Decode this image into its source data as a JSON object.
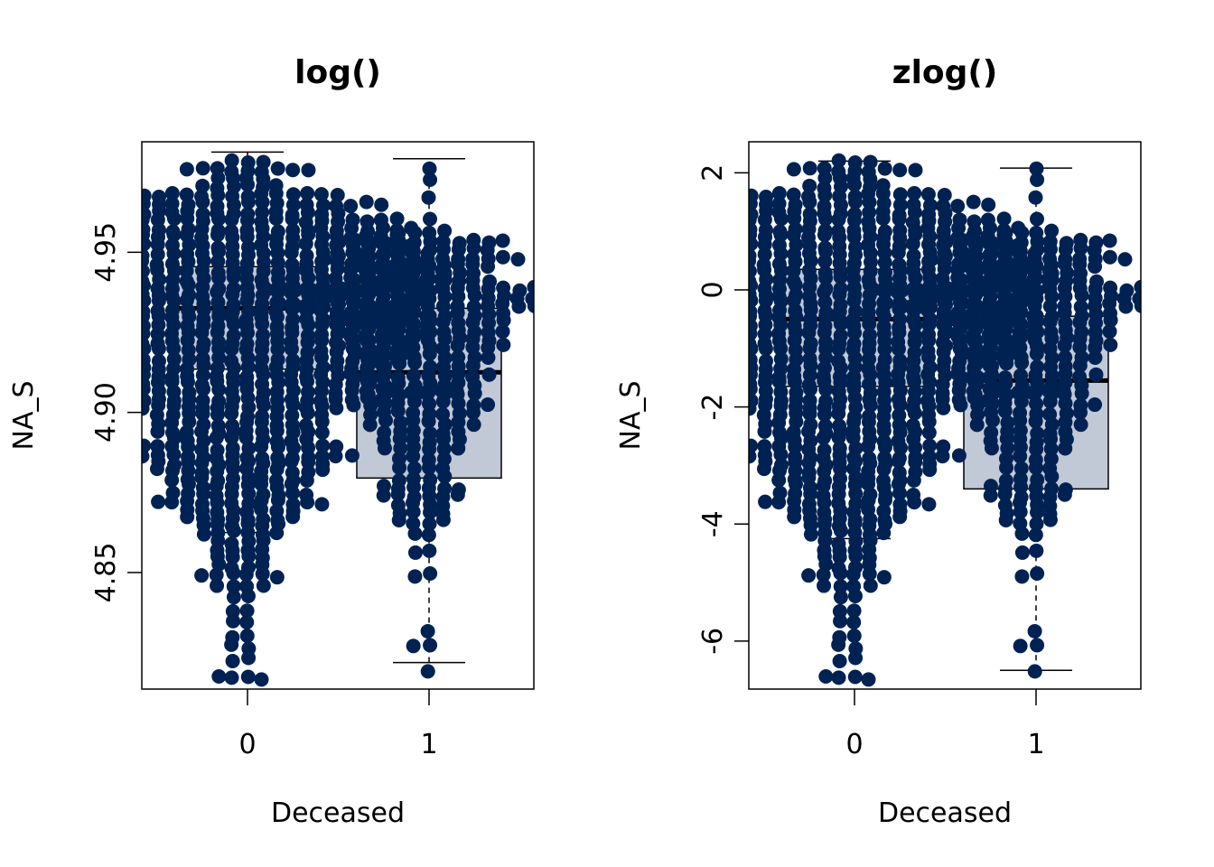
{
  "colors": {
    "point": "#002252",
    "box_fill": "#C1C8D6",
    "box_stroke": "#000000",
    "axis": "#000000",
    "background": "#FFFFFF"
  },
  "chart_data": [
    {
      "type": "boxplot-beeswarm",
      "title": "log()",
      "xlabel": "Deceased",
      "ylabel": "NA_S",
      "categories": [
        "0",
        "1"
      ],
      "ylim": [
        4.8136,
        4.9845
      ],
      "yticks": [
        4.85,
        4.9,
        4.95
      ],
      "ytick_labels": [
        "4.85",
        "4.90",
        "4.95"
      ],
      "boxes": [
        {
          "category": "0",
          "whisker_low": 4.8625,
          "q1": 4.9135,
          "median": 4.9325,
          "q3": 4.9455,
          "whisker_high": 4.9813
        },
        {
          "category": "1",
          "whisker_low": 4.8219,
          "q1": 4.8795,
          "median": 4.9125,
          "q3": 4.9325,
          "whisker_high": 4.9792
        }
      ]
    },
    {
      "type": "boxplot-beeswarm",
      "title": "zlog()",
      "xlabel": "Deceased",
      "ylabel": "NA_S",
      "categories": [
        "0",
        "1"
      ],
      "ylim": [
        -6.82,
        2.53
      ],
      "yticks": [
        -6,
        -4,
        -2,
        0,
        2
      ],
      "ytick_labels": [
        "-6",
        "-4",
        "-2",
        "0",
        "2"
      ],
      "boxes": [
        {
          "category": "0",
          "whisker_low": -4.25,
          "q1": -1.65,
          "median": -0.5,
          "q3": 0.35,
          "whisker_high": 2.2
        },
        {
          "category": "1",
          "whisker_low": -6.5,
          "q1": -3.4,
          "median": -1.55,
          "q3": -0.45,
          "whisker_high": 2.08
        }
      ]
    }
  ]
}
